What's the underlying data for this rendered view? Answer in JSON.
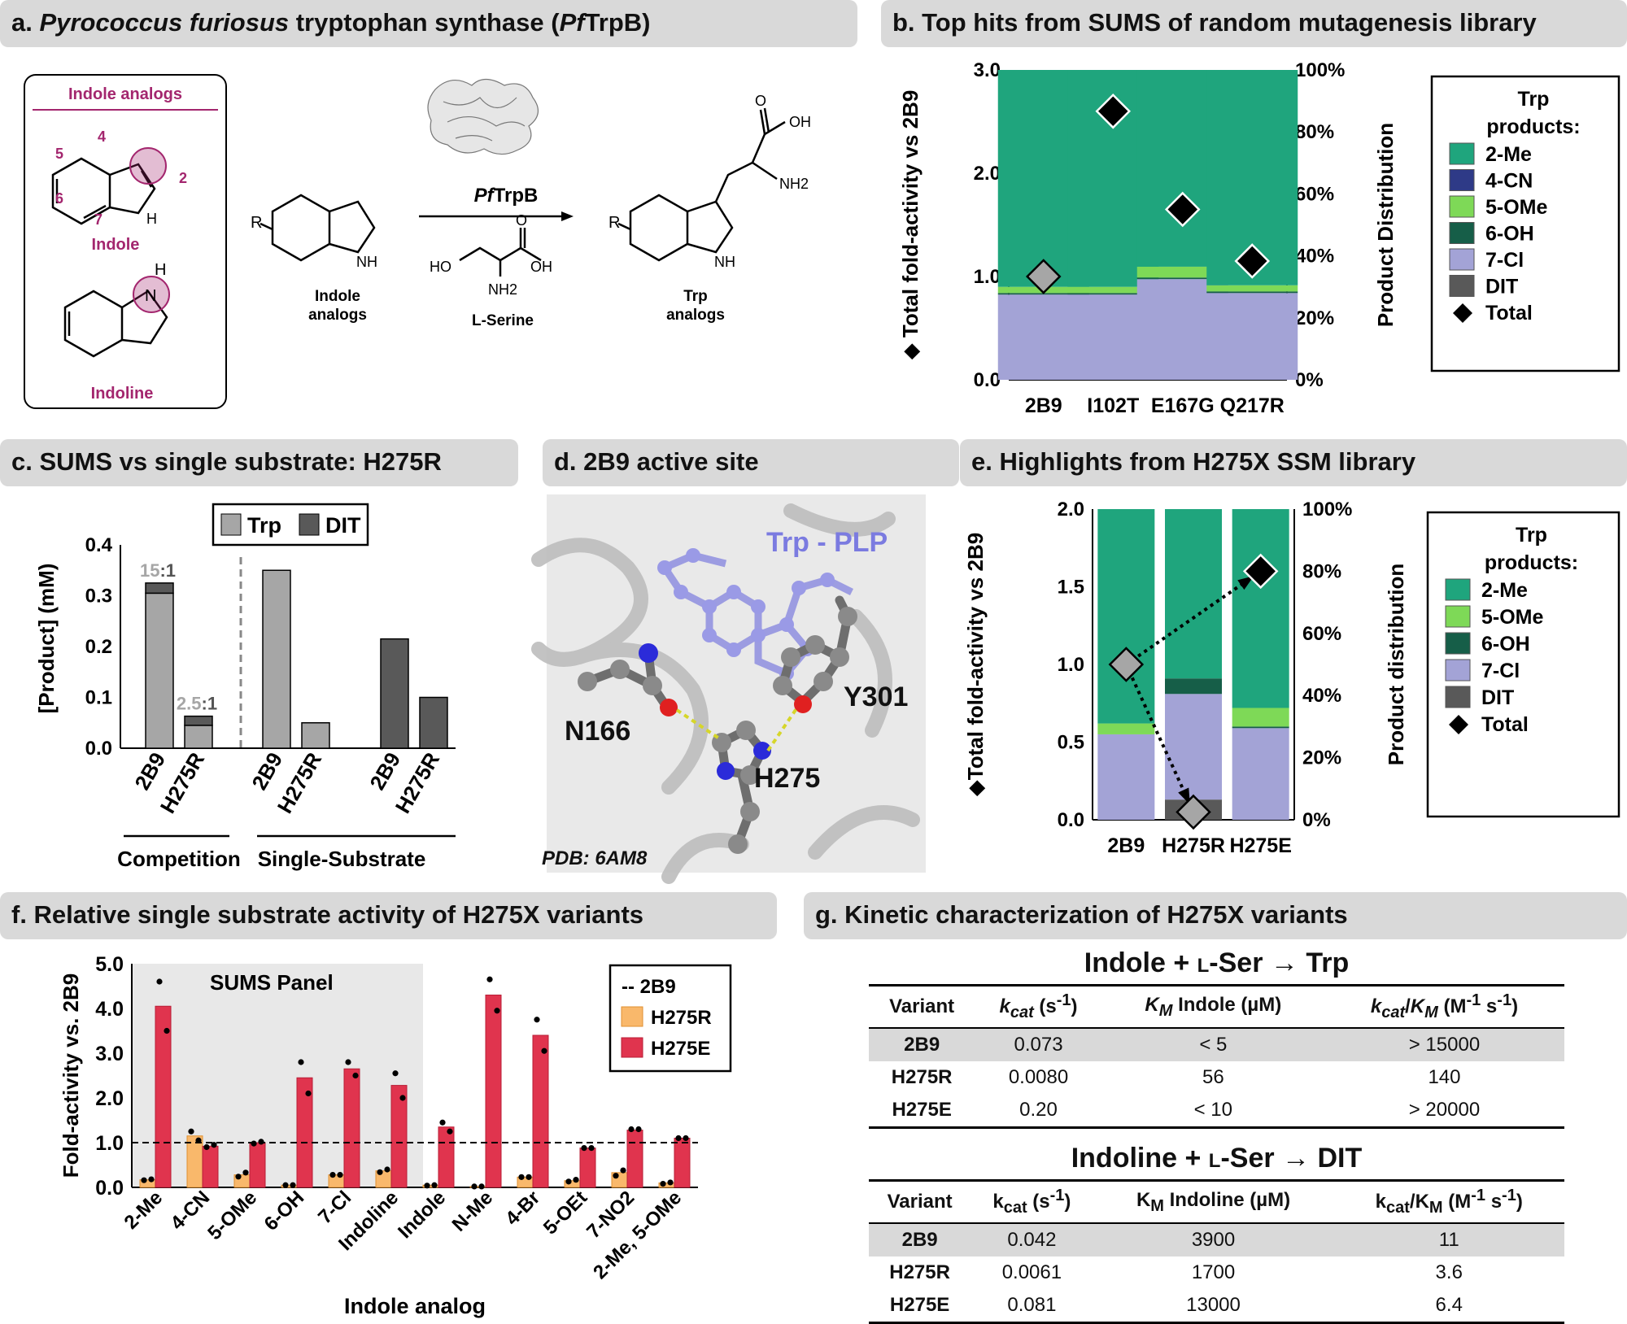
{
  "panels": {
    "a": {
      "title_prefix": "a. ",
      "title_italic": "Pyrococcus furiosus",
      "title_mid": " tryptophan synthase (",
      "title_italic2": "Pf",
      "title_end": "TrpB)"
    },
    "b": {
      "title": "b. Top hits from SUMS of random mutagenesis library"
    },
    "c": {
      "title": "c. SUMS vs single substrate: H275R"
    },
    "d": {
      "title": "d. 2B9 active site"
    },
    "e": {
      "title": "e. Highlights from H275X SSM library"
    },
    "f": {
      "title": "f. Relative single substrate activity of H275X variants"
    },
    "g": {
      "title": "g. Kinetic characterization of H275X variants"
    }
  },
  "scheme": {
    "box_title": "Indole analogs",
    "indole_label": "Indole",
    "indoline_label": "Indoline",
    "positions": [
      "4",
      "5",
      "6",
      "7",
      "2"
    ],
    "indoline_h": "H",
    "nh": "H",
    "r_group": "R",
    "reactant_label": "Indole\nanalogs",
    "enzyme_label_italic": "Pf",
    "enzyme_label_rest": "TrpB",
    "serine_label": "L-Serine",
    "serine_atoms": {
      "o": "O",
      "ho": "HO",
      "oh": "OH",
      "nh2": "NH2"
    },
    "product_label": "Trp\nanalogs",
    "product_atoms": {
      "o": "O",
      "oh": "OH",
      "nh2": "NH2"
    }
  },
  "active_site": {
    "labels": [
      "Trp - PLP",
      "N166",
      "Y301",
      "H275"
    ],
    "pdb": "PDB: 6AM8"
  },
  "colors": {
    "2-Me": "#1fa57d",
    "4-CN": "#2e3a87",
    "5-OMe": "#7ed957",
    "6-OH": "#165e48",
    "7-Cl": "#a3a3d6",
    "DIT": "#595959",
    "trp_bar": "#a6a6a6",
    "dit_bar": "#595959",
    "h275r": "#f9b86b",
    "h275e": "#e0344e",
    "purple": "#a3266e",
    "ligand": "#8f8fe0"
  },
  "chart_data": [
    {
      "id": "b",
      "type": "bar",
      "stacked": true,
      "categories": [
        "2B9",
        "I102T",
        "E167G",
        "Q217R"
      ],
      "series": [
        {
          "name": "7-Cl",
          "values": [
            27.5,
            27.5,
            32.5,
            28
          ]
        },
        {
          "name": "6-OH",
          "values": [
            0.5,
            0.5,
            0.5,
            0.5
          ]
        },
        {
          "name": "5-OMe",
          "values": [
            2,
            2,
            3.5,
            2
          ]
        },
        {
          "name": "4-CN",
          "values": [
            0,
            0,
            0,
            0
          ]
        },
        {
          "name": "DIT",
          "values": [
            0,
            0,
            0,
            0
          ]
        },
        {
          "name": "2-Me",
          "values": [
            70,
            70,
            63.5,
            69.5
          ]
        }
      ],
      "total": [
        1.0,
        2.6,
        1.65,
        1.15
      ],
      "ylabel": "◆ Total fold-activity vs 2B9",
      "y2label": "Product Distribution",
      "yticks": [
        "0.0",
        "1.0",
        "2.0",
        "3.0"
      ],
      "ylim": [
        0,
        3
      ],
      "y2ticks": [
        "0%",
        "20%",
        "40%",
        "60%",
        "80%",
        "100%"
      ],
      "legend": {
        "title": "Trp\nproducts:",
        "items": [
          "2-Me",
          "4-CN",
          "5-OMe",
          "6-OH",
          "7-Cl",
          "DIT",
          "Total"
        ]
      }
    },
    {
      "id": "c",
      "type": "bar",
      "ylabel": "[Product] (mM)",
      "ylim": [
        0,
        0.4
      ],
      "yticks": [
        "0.0",
        "0.1",
        "0.2",
        "0.3",
        "0.4"
      ],
      "groups": [
        {
          "name": "Competition",
          "bars": [
            {
              "label": "2B9",
              "trp": 0.305,
              "dit": 0.02,
              "ratio_a": "15",
              "ratio_b": ":1"
            },
            {
              "label": "H275R",
              "trp": 0.045,
              "dit": 0.018,
              "ratio_a": "2.5",
              "ratio_b": ":1"
            }
          ]
        },
        {
          "name": "Single-Substrate",
          "bars": [
            {
              "label": "2B9",
              "trp": 0.35
            },
            {
              "label": "H275R",
              "trp": 0.05
            },
            {
              "label": "2B9",
              "dit": 0.215
            },
            {
              "label": "H275R",
              "dit": 0.1
            }
          ]
        }
      ],
      "legend": [
        "Trp",
        "DIT"
      ]
    },
    {
      "id": "e",
      "type": "bar",
      "stacked": true,
      "categories": [
        "2B9",
        "H275R",
        "H275E"
      ],
      "series": [
        {
          "name": "DIT",
          "values": [
            0,
            6.5,
            0
          ]
        },
        {
          "name": "7-Cl",
          "values": [
            27.5,
            34,
            29.5
          ]
        },
        {
          "name": "6-OH",
          "values": [
            0,
            5,
            0.5
          ]
        },
        {
          "name": "5-OMe",
          "values": [
            3.5,
            0,
            6
          ]
        },
        {
          "name": "2-Me",
          "values": [
            69,
            54.5,
            64
          ]
        }
      ],
      "total": [
        1.0,
        0.05,
        1.6
      ],
      "ylabel": "◆Total fold-activity vs 2B9",
      "y2label": "Product distribution",
      "yticks": [
        "0.0",
        "0.5",
        "1.0",
        "1.5",
        "2.0"
      ],
      "ylim": [
        0,
        2
      ],
      "y2ticks": [
        "0%",
        "20%",
        "40%",
        "60%",
        "80%",
        "100%"
      ],
      "legend": {
        "title": "Trp\nproducts:",
        "items": [
          "2-Me",
          "5-OMe",
          "6-OH",
          "7-Cl",
          "DIT",
          "Total"
        ]
      }
    },
    {
      "id": "f",
      "type": "bar",
      "categories": [
        "2-Me",
        "4-CN",
        "5-OMe",
        "6-OH",
        "7-Cl",
        "Indoline",
        "Indole",
        "N-Me",
        "4-Br",
        "5-OEt",
        "7-NO2",
        "2-Me, 5-OMe"
      ],
      "series": [
        {
          "name": "H275R",
          "values": [
            0.17,
            1.15,
            0.28,
            0.05,
            0.28,
            0.37,
            0.05,
            0.02,
            0.23,
            0.15,
            0.33,
            0.1
          ]
        },
        {
          "name": "H275E",
          "values": [
            4.05,
            0.92,
            1.0,
            2.45,
            2.65,
            2.28,
            1.35,
            4.3,
            3.4,
            0.88,
            1.28,
            1.1
          ]
        }
      ],
      "points": {
        "H275R": [
          [
            0.16,
            0.18
          ],
          [
            1.25,
            1.05
          ],
          [
            0.24,
            0.33
          ],
          [
            0.05,
            0.05
          ],
          [
            0.28,
            0.28
          ],
          [
            0.34,
            0.4
          ],
          [
            0.04,
            0.05
          ],
          [
            0.02,
            0.02
          ],
          [
            0.23,
            0.23
          ],
          [
            0.13,
            0.17
          ],
          [
            0.26,
            0.38
          ],
          [
            0.08,
            0.11
          ]
        ],
        "H275E": [
          [
            4.6,
            3.5
          ],
          [
            0.9,
            0.95
          ],
          [
            0.98,
            1.02
          ],
          [
            2.8,
            2.1
          ],
          [
            2.8,
            2.5
          ],
          [
            2.55,
            2.0
          ],
          [
            1.45,
            1.25
          ],
          [
            4.65,
            3.95
          ],
          [
            3.75,
            3.05
          ],
          [
            0.88,
            0.88
          ],
          [
            1.3,
            1.3
          ],
          [
            1.1,
            1.1
          ]
        ]
      },
      "baseline": 1.0,
      "ylabel": "Fold-activity vs. 2B9",
      "xlabel": "Indole analog",
      "ylim": [
        0,
        5
      ],
      "yticks": [
        "0.0",
        "1.0",
        "2.0",
        "3.0",
        "4.0",
        "5.0"
      ],
      "shaded_label": "SUMS Panel",
      "legend": [
        "-- 2B9",
        "H275R",
        "H275E"
      ]
    }
  ],
  "table1": {
    "title": "Indole + L-Ser → Trp",
    "headers": [
      "Variant",
      "kcat (s-1)",
      "KM Indole (µM)",
      "kcat/KM (M-1 s-1)"
    ],
    "rows": [
      [
        "2B9",
        "0.073",
        "< 5",
        "> 15000"
      ],
      [
        "H275R",
        "0.0080",
        "56",
        "140"
      ],
      [
        "H275E",
        "0.20",
        "< 10",
        "> 20000"
      ]
    ]
  },
  "table2": {
    "title": "Indoline + L-Ser → DIT",
    "headers": [
      "Variant",
      "kcat (s-1)",
      "KM Indoline (µM)",
      "kcat/KM (M-1 s-1)"
    ],
    "rows": [
      [
        "2B9",
        "0.042",
        "3900",
        "11"
      ],
      [
        "H275R",
        "0.0061",
        "1700",
        "3.6"
      ],
      [
        "H275E",
        "0.081",
        "13000",
        "6.4"
      ]
    ]
  }
}
